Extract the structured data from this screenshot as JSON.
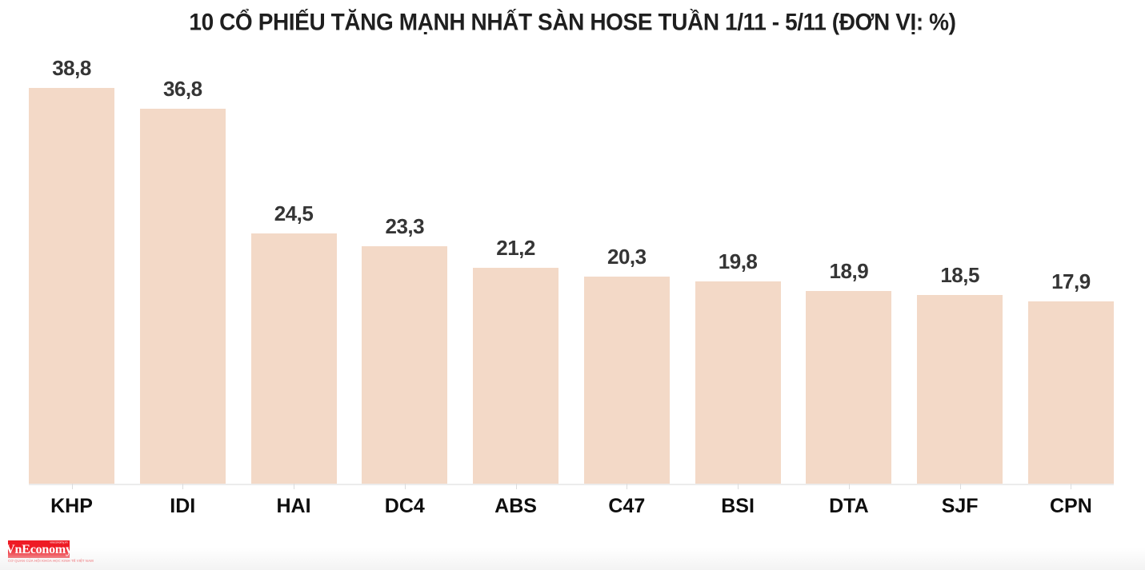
{
  "title": "10 CỔ PHIẾU TĂNG MẠNH NHẤT SÀN HOSE TUẦN 1/11 - 5/11 (ĐƠN VỊ: %)",
  "chart_data": {
    "type": "bar",
    "title": "10 CỔ PHIẾU TĂNG MẠNH NHẤT SÀN HOSE TUẦN 1/11 - 5/11 (ĐƠN VỊ: %)",
    "unit": "%",
    "categories": [
      "KHP",
      "IDI",
      "HAI",
      "DC4",
      "ABS",
      "C47",
      "BSI",
      "DTA",
      "SJF",
      "CPN"
    ],
    "values": [
      38.8,
      36.8,
      24.5,
      23.3,
      21.2,
      20.3,
      19.8,
      18.9,
      18.5,
      17.9
    ],
    "value_labels": [
      "38,8",
      "36,8",
      "24,5",
      "23,3",
      "21,2",
      "20,3",
      "19,8",
      "18,9",
      "18,5",
      "17,9"
    ],
    "bar_color": "#f3d9c7",
    "label_color": "#353535",
    "ylim": [
      0,
      40
    ],
    "grid": false,
    "legend": "none",
    "xlabel": "",
    "ylabel": ""
  },
  "footer": {
    "logo_text": "VnEconomy",
    "logo_top_text": "vneconomy.vn",
    "logo_tagline": "CƠ QUAN CỦA HỘI KHOA HỌC KINH TẾ VIỆT NAM",
    "logo_bg_color": "#ee1b24"
  }
}
